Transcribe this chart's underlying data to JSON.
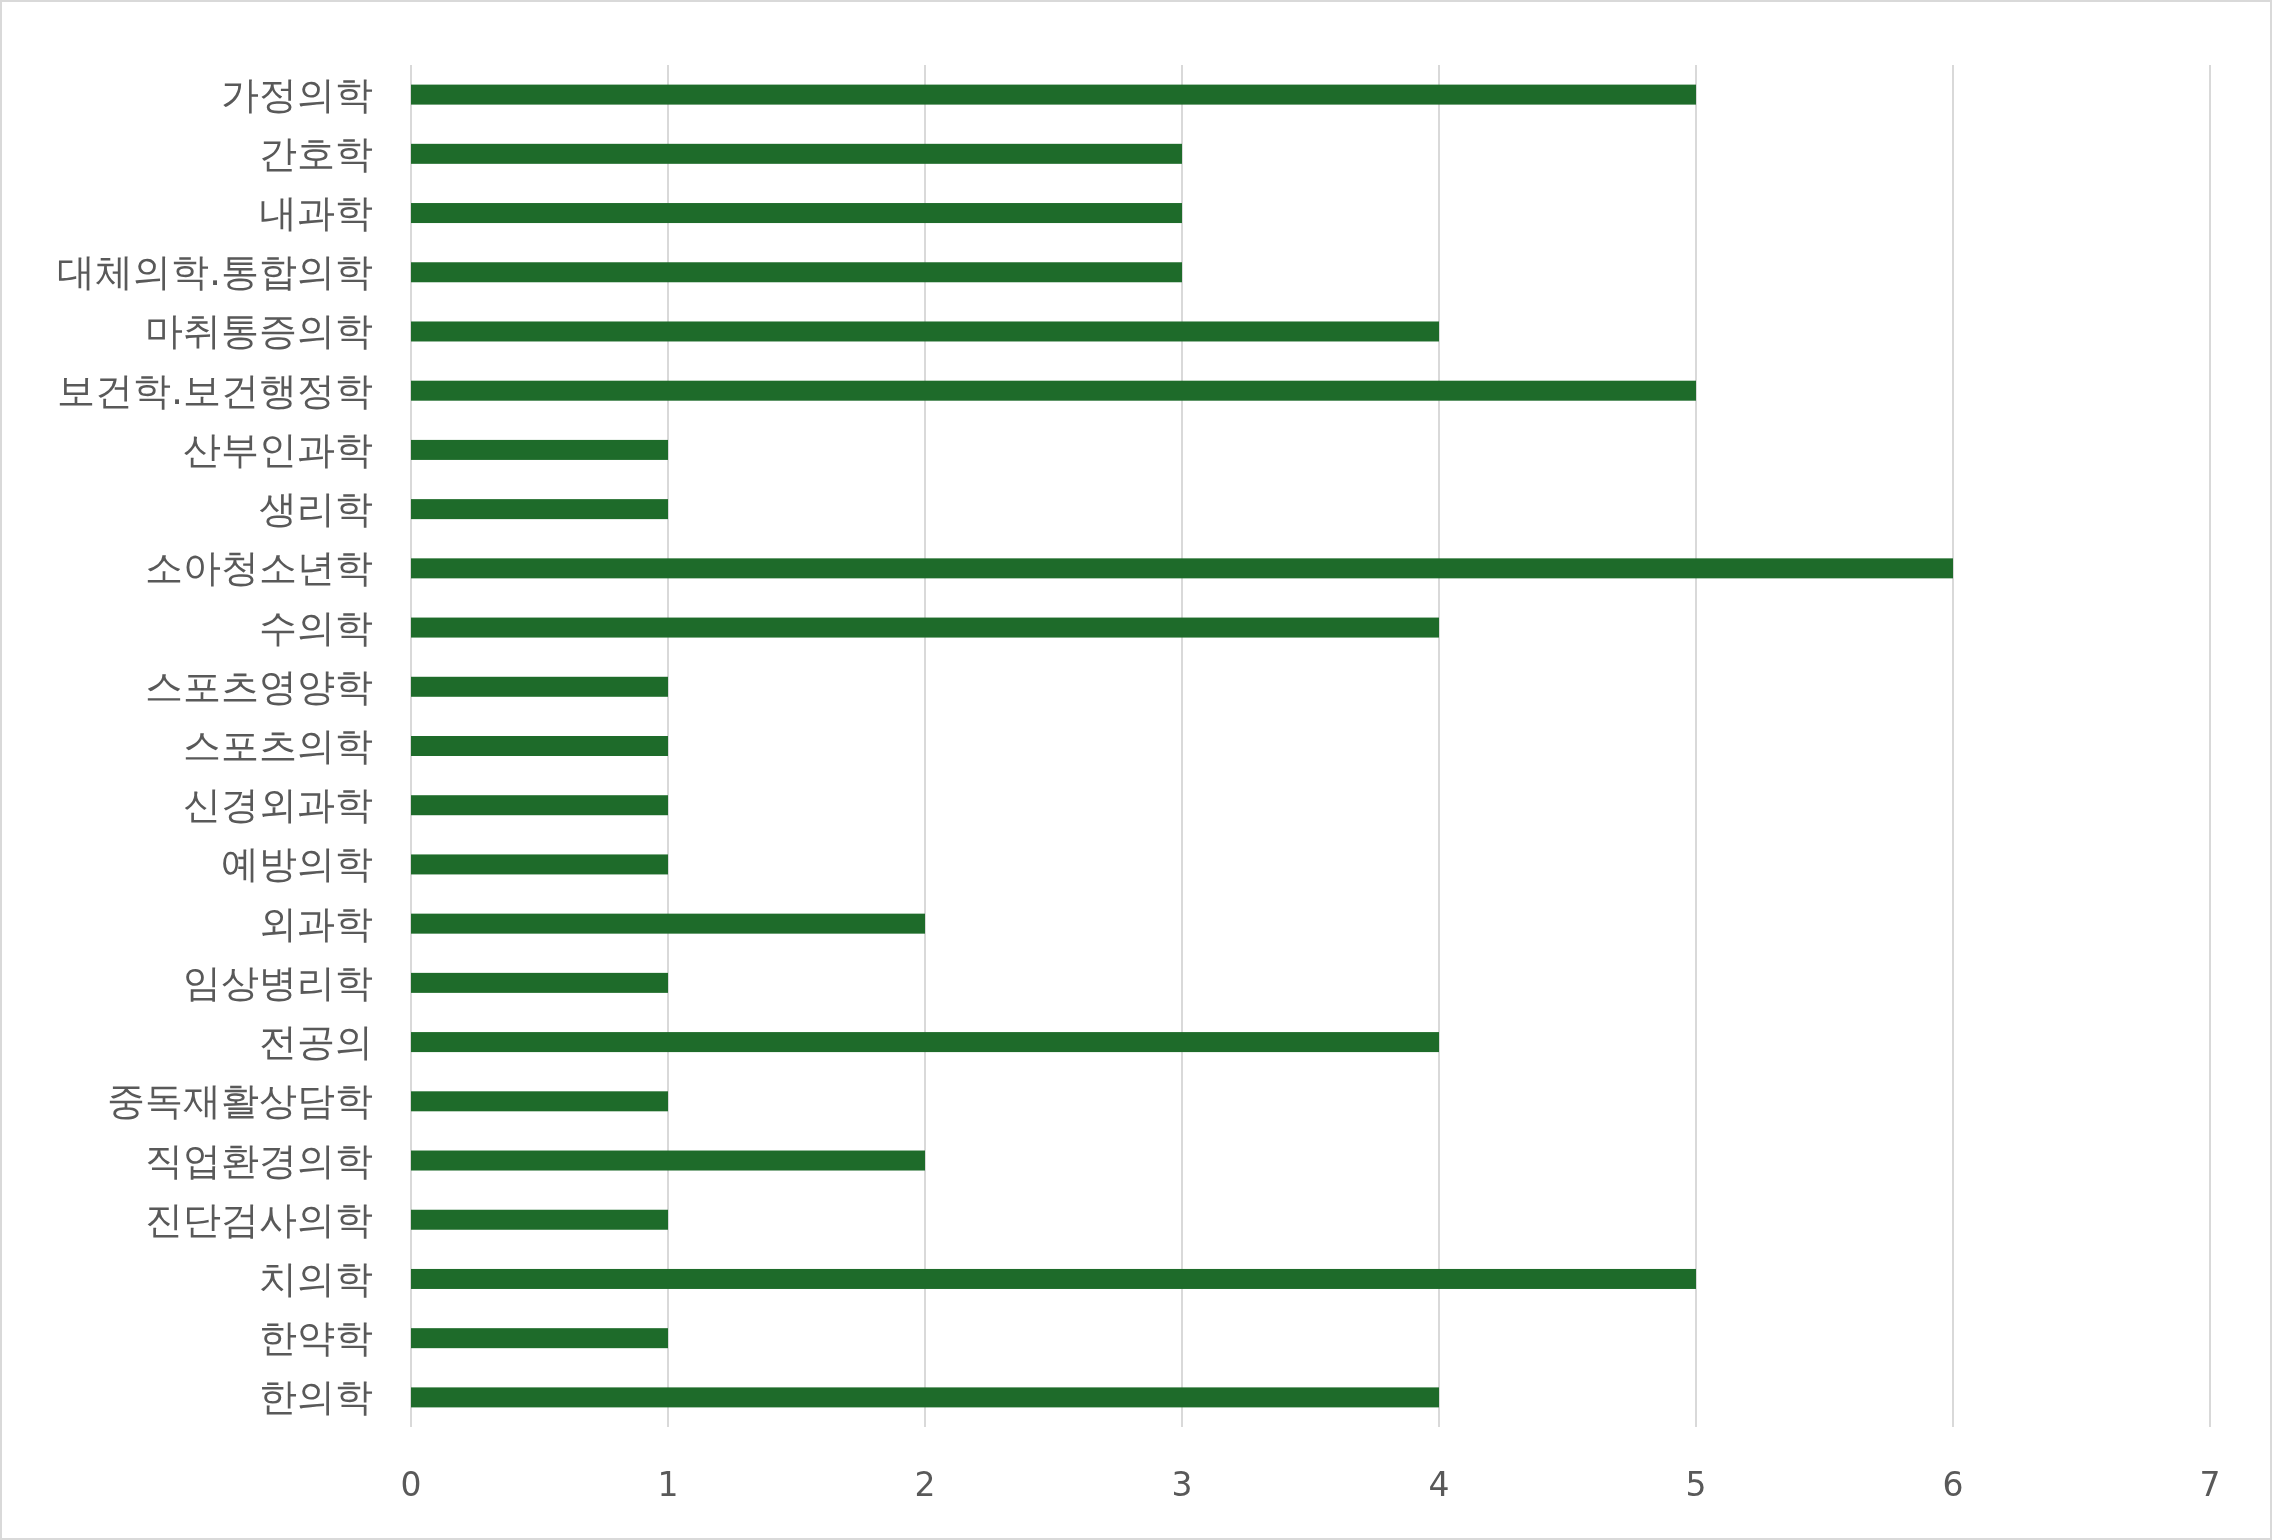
{
  "chart_data": {
    "type": "bar",
    "orientation": "horizontal",
    "categories": [
      "가정의학",
      "간호학",
      "내과학",
      "대체의학.통합의학",
      "마취통증의학",
      "보건학.보건행정학",
      "산부인과학",
      "생리학",
      "소아청소년학",
      "수의학",
      "스포츠영양학",
      "스포츠의학",
      "신경외과학",
      "예방의학",
      "외과학",
      "임상병리학",
      "전공의",
      "중독재활상담학",
      "직업환경의학",
      "진단검사의학",
      "치의학",
      "한약학",
      "한의학"
    ],
    "values": [
      5,
      3,
      3,
      3,
      4,
      5,
      1,
      1,
      6,
      4,
      1,
      1,
      1,
      1,
      2,
      1,
      4,
      1,
      2,
      1,
      5,
      1,
      4
    ],
    "color": "#1e6b2a",
    "xlim": [
      0,
      7
    ],
    "xticks": [
      0,
      1,
      2,
      3,
      4,
      5,
      6,
      7
    ],
    "grid": "x"
  }
}
